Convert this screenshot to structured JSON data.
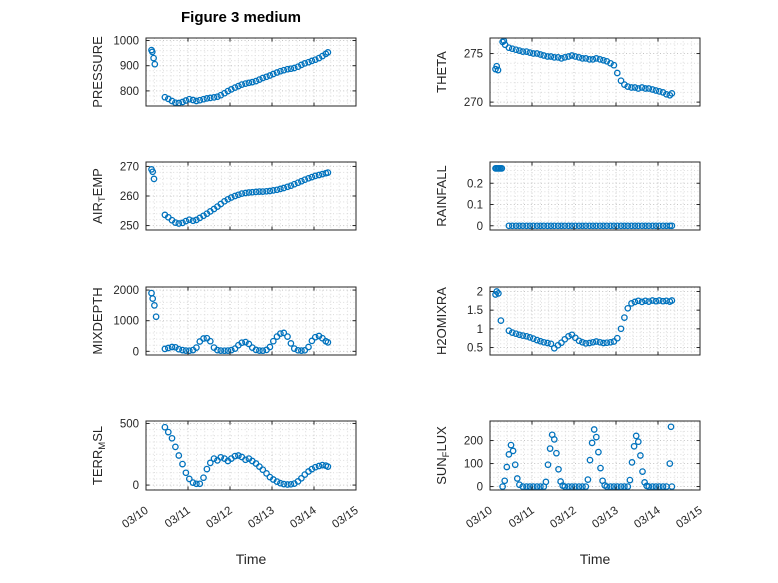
{
  "figure": {
    "title": "Figure 3 medium",
    "xlabel": "Time",
    "x_tick_labels": [
      "03/10",
      "03/11",
      "03/12",
      "03/13",
      "03/14",
      "03/15"
    ],
    "marker_color": "#0072BD",
    "text_color": "#262626"
  },
  "chart_data": [
    {
      "type": "scatter",
      "name": "PRESSURE",
      "row": 0,
      "col": 0,
      "ylabel": {
        "pre": "PRESSURE",
        "sub": "",
        "post": ""
      },
      "xlim": [
        0,
        5
      ],
      "xticks": [
        0,
        1,
        2,
        3,
        4,
        5
      ],
      "ylim": [
        740,
        1010
      ],
      "yticks": [
        800,
        900,
        1000
      ],
      "ytick_labels": [
        "800",
        "900",
        "1000"
      ],
      "y_minor_step": 20,
      "x": [
        0.13,
        0.15,
        0.18,
        0.21,
        0.45,
        0.53,
        0.62,
        0.7,
        0.78,
        0.87,
        0.95,
        1.03,
        1.12,
        1.2,
        1.28,
        1.37,
        1.45,
        1.53,
        1.62,
        1.7,
        1.78,
        1.87,
        1.95,
        2.03,
        2.12,
        2.2,
        2.28,
        2.37,
        2.45,
        2.53,
        2.62,
        2.7,
        2.78,
        2.87,
        2.95,
        3.03,
        3.12,
        3.2,
        3.28,
        3.37,
        3.45,
        3.53,
        3.62,
        3.7,
        3.78,
        3.87,
        3.95,
        4.03,
        4.12,
        4.2,
        4.28,
        4.33
      ],
      "y": [
        962,
        955,
        930,
        906,
        775,
        768,
        760,
        753,
        752,
        756,
        762,
        767,
        764,
        760,
        763,
        767,
        770,
        772,
        774,
        777,
        783,
        791,
        799,
        806,
        813,
        819,
        825,
        829,
        832,
        835,
        839,
        845,
        851,
        856,
        861,
        867,
        873,
        878,
        882,
        886,
        888,
        891,
        896,
        903,
        909,
        914,
        919,
        924,
        930,
        938,
        947,
        953
      ]
    },
    {
      "type": "scatter",
      "name": "THETA",
      "row": 0,
      "col": 1,
      "ylabel": {
        "pre": "THETA",
        "sub": "",
        "post": ""
      },
      "xlim": [
        0,
        5
      ],
      "xticks": [
        0,
        1,
        2,
        3,
        4,
        5
      ],
      "ylim": [
        269.6,
        276.6
      ],
      "yticks": [
        270,
        275
      ],
      "ytick_labels": [
        "270",
        "275"
      ],
      "y_minor_step": 1,
      "x": [
        0.13,
        0.16,
        0.19,
        0.3,
        0.33,
        0.36,
        0.45,
        0.53,
        0.62,
        0.7,
        0.78,
        0.87,
        0.95,
        1.03,
        1.12,
        1.2,
        1.28,
        1.37,
        1.45,
        1.53,
        1.62,
        1.7,
        1.78,
        1.87,
        1.95,
        2.03,
        2.12,
        2.2,
        2.28,
        2.37,
        2.45,
        2.53,
        2.62,
        2.7,
        2.78,
        2.87,
        2.95,
        3.03,
        3.12,
        3.2,
        3.28,
        3.37,
        3.45,
        3.53,
        3.62,
        3.7,
        3.78,
        3.87,
        3.95,
        4.03,
        4.12,
        4.2,
        4.28,
        4.33
      ],
      "y": [
        273.4,
        273.7,
        273.3,
        276.2,
        276.3,
        275.9,
        275.6,
        275.5,
        275.4,
        275.3,
        275.2,
        275.2,
        275.1,
        275.0,
        275.0,
        274.9,
        274.8,
        274.7,
        274.7,
        274.6,
        274.6,
        274.5,
        274.6,
        274.7,
        274.8,
        274.7,
        274.6,
        274.5,
        274.5,
        274.4,
        274.4,
        274.5,
        274.4,
        274.3,
        274.2,
        274.0,
        273.8,
        273.0,
        272.2,
        271.8,
        271.6,
        271.5,
        271.5,
        271.4,
        271.5,
        271.4,
        271.4,
        271.3,
        271.2,
        271.1,
        271.0,
        270.8,
        270.7,
        270.9
      ]
    },
    {
      "type": "scatter",
      "name": "AIR_TEMP",
      "row": 1,
      "col": 0,
      "ylabel": {
        "pre": "AIR",
        "sub": "T",
        "post": "EMP"
      },
      "xlim": [
        0,
        5
      ],
      "xticks": [
        0,
        1,
        2,
        3,
        4,
        5
      ],
      "ylim": [
        248.5,
        271.5
      ],
      "yticks": [
        250,
        260,
        270
      ],
      "ytick_labels": [
        "250",
        "260",
        "270"
      ],
      "y_minor_step": 2,
      "x": [
        0.13,
        0.16,
        0.19,
        0.45,
        0.53,
        0.62,
        0.7,
        0.78,
        0.87,
        0.95,
        1.03,
        1.12,
        1.2,
        1.28,
        1.37,
        1.45,
        1.53,
        1.62,
        1.7,
        1.78,
        1.87,
        1.95,
        2.03,
        2.12,
        2.2,
        2.28,
        2.37,
        2.45,
        2.53,
        2.62,
        2.7,
        2.78,
        2.87,
        2.95,
        3.03,
        3.12,
        3.2,
        3.28,
        3.37,
        3.45,
        3.53,
        3.62,
        3.7,
        3.78,
        3.87,
        3.95,
        4.03,
        4.12,
        4.2,
        4.28,
        4.33
      ],
      "y": [
        269.0,
        268.2,
        265.8,
        253.6,
        252.8,
        251.8,
        251.0,
        250.7,
        250.9,
        251.5,
        252.0,
        251.6,
        251.9,
        252.6,
        253.3,
        254.0,
        254.8,
        255.6,
        256.4,
        257.3,
        258.2,
        258.9,
        259.5,
        260.0,
        260.4,
        260.8,
        261.0,
        261.2,
        261.3,
        261.4,
        261.5,
        261.5,
        261.6,
        261.7,
        261.9,
        262.1,
        262.4,
        262.7,
        263.1,
        263.5,
        264.0,
        264.5,
        265.0,
        265.5,
        266.0,
        266.4,
        266.8,
        267.1,
        267.4,
        267.7,
        267.9
      ]
    },
    {
      "type": "scatter",
      "name": "RAINFALL",
      "row": 1,
      "col": 1,
      "ylabel": {
        "pre": "RAINFALL",
        "sub": "",
        "post": ""
      },
      "xlim": [
        0,
        5
      ],
      "xticks": [
        0,
        1,
        2,
        3,
        4,
        5
      ],
      "ylim": [
        -0.02,
        0.3
      ],
      "yticks": [
        0,
        0.1,
        0.2
      ],
      "ytick_labels": [
        "0",
        "0.1",
        "0.2"
      ],
      "y_minor_step": 0.02,
      "x": [
        0.13,
        0.16,
        0.19,
        0.22,
        0.25,
        0.28,
        0.45,
        0.53,
        0.62,
        0.7,
        0.78,
        0.87,
        0.95,
        1.03,
        1.12,
        1.2,
        1.28,
        1.37,
        1.45,
        1.53,
        1.62,
        1.7,
        1.78,
        1.87,
        1.95,
        2.03,
        2.12,
        2.2,
        2.28,
        2.37,
        2.45,
        2.53,
        2.62,
        2.7,
        2.78,
        2.87,
        2.95,
        3.03,
        3.12,
        3.2,
        3.28,
        3.37,
        3.45,
        3.53,
        3.62,
        3.7,
        3.78,
        3.87,
        3.95,
        4.03,
        4.12,
        4.2,
        4.28,
        4.33
      ],
      "y": [
        0.27,
        0.27,
        0.27,
        0.27,
        0.27,
        0.27,
        0,
        0,
        0,
        0,
        0,
        0,
        0,
        0,
        0,
        0,
        0,
        0,
        0,
        0,
        0,
        0,
        0,
        0,
        0,
        0,
        0,
        0,
        0,
        0,
        0,
        0,
        0,
        0,
        0,
        0,
        0,
        0,
        0,
        0,
        0,
        0,
        0,
        0,
        0,
        0,
        0,
        0,
        0,
        0,
        0,
        0,
        0,
        0
      ]
    },
    {
      "type": "scatter",
      "name": "MIXDEPTH",
      "row": 2,
      "col": 0,
      "ylabel": {
        "pre": "MIXDEPTH",
        "sub": "",
        "post": ""
      },
      "xlim": [
        0,
        5
      ],
      "xticks": [
        0,
        1,
        2,
        3,
        4,
        5
      ],
      "ylim": [
        -120,
        2100
      ],
      "yticks": [
        0,
        1000,
        2000
      ],
      "ytick_labels": [
        "0",
        "1000",
        "2000"
      ],
      "y_minor_step": 200,
      "x": [
        0.13,
        0.16,
        0.2,
        0.24,
        0.45,
        0.53,
        0.62,
        0.7,
        0.78,
        0.87,
        0.95,
        1.03,
        1.12,
        1.2,
        1.28,
        1.37,
        1.45,
        1.53,
        1.62,
        1.7,
        1.78,
        1.87,
        1.95,
        2.03,
        2.12,
        2.2,
        2.28,
        2.37,
        2.45,
        2.53,
        2.62,
        2.7,
        2.78,
        2.87,
        2.95,
        3.03,
        3.12,
        3.2,
        3.28,
        3.37,
        3.45,
        3.53,
        3.62,
        3.7,
        3.78,
        3.87,
        3.95,
        4.03,
        4.12,
        4.2,
        4.28,
        4.33
      ],
      "y": [
        1900,
        1720,
        1500,
        1130,
        80,
        110,
        140,
        130,
        70,
        40,
        25,
        20,
        40,
        120,
        320,
        420,
        430,
        330,
        120,
        40,
        25,
        20,
        25,
        40,
        90,
        200,
        280,
        300,
        240,
        120,
        45,
        25,
        20,
        45,
        140,
        330,
        480,
        580,
        600,
        480,
        260,
        90,
        35,
        25,
        35,
        140,
        340,
        460,
        500,
        430,
        330,
        290
      ]
    },
    {
      "type": "scatter",
      "name": "H2OMIXRA",
      "row": 2,
      "col": 1,
      "ylabel": {
        "pre": "H2OMIXRA",
        "sub": "",
        "post": ""
      },
      "xlim": [
        0,
        5
      ],
      "xticks": [
        0,
        1,
        2,
        3,
        4,
        5
      ],
      "ylim": [
        0.3,
        2.12
      ],
      "yticks": [
        0.5,
        1,
        1.5,
        2
      ],
      "ytick_labels": [
        "0.5",
        "1",
        "1.5",
        "2"
      ],
      "y_minor_step": 0.1,
      "x": [
        0.13,
        0.16,
        0.2,
        0.26,
        0.45,
        0.53,
        0.62,
        0.7,
        0.78,
        0.87,
        0.95,
        1.03,
        1.12,
        1.2,
        1.28,
        1.37,
        1.45,
        1.53,
        1.62,
        1.7,
        1.78,
        1.87,
        1.95,
        2.03,
        2.12,
        2.2,
        2.28,
        2.37,
        2.45,
        2.53,
        2.62,
        2.7,
        2.78,
        2.87,
        2.95,
        3.03,
        3.12,
        3.2,
        3.28,
        3.37,
        3.45,
        3.53,
        3.62,
        3.7,
        3.78,
        3.87,
        3.95,
        4.03,
        4.12,
        4.2,
        4.28,
        4.33
      ],
      "y": [
        1.92,
        2.0,
        1.95,
        1.22,
        0.95,
        0.9,
        0.87,
        0.84,
        0.82,
        0.8,
        0.77,
        0.74,
        0.7,
        0.67,
        0.64,
        0.62,
        0.6,
        0.48,
        0.56,
        0.63,
        0.72,
        0.8,
        0.84,
        0.76,
        0.68,
        0.64,
        0.61,
        0.62,
        0.64,
        0.66,
        0.64,
        0.62,
        0.63,
        0.64,
        0.66,
        0.75,
        1.0,
        1.3,
        1.55,
        1.68,
        1.72,
        1.75,
        1.72,
        1.75,
        1.73,
        1.76,
        1.74,
        1.76,
        1.74,
        1.75,
        1.73,
        1.76
      ]
    },
    {
      "type": "scatter",
      "name": "TERR_MSL",
      "row": 3,
      "col": 0,
      "ylabel": {
        "pre": "TERR",
        "sub": "M",
        "post": "SL"
      },
      "xlim": [
        0,
        5
      ],
      "xticks": [
        0,
        1,
        2,
        3,
        4,
        5
      ],
      "ylim": [
        -40,
        520
      ],
      "yticks": [
        0,
        500
      ],
      "ytick_labels": [
        "0",
        "500"
      ],
      "y_minor_step": 50,
      "x": [
        0.45,
        0.53,
        0.62,
        0.7,
        0.78,
        0.87,
        0.95,
        1.03,
        1.12,
        1.2,
        1.28,
        1.37,
        1.45,
        1.53,
        1.62,
        1.7,
        1.78,
        1.87,
        1.95,
        2.03,
        2.12,
        2.2,
        2.28,
        2.37,
        2.45,
        2.53,
        2.62,
        2.7,
        2.78,
        2.87,
        2.95,
        3.03,
        3.12,
        3.2,
        3.28,
        3.37,
        3.45,
        3.53,
        3.62,
        3.7,
        3.78,
        3.87,
        3.95,
        4.03,
        4.12,
        4.2,
        4.28,
        4.33
      ],
      "y": [
        470,
        430,
        380,
        310,
        240,
        170,
        100,
        50,
        20,
        10,
        10,
        60,
        130,
        180,
        215,
        200,
        225,
        215,
        195,
        215,
        235,
        240,
        228,
        205,
        215,
        195,
        175,
        150,
        125,
        95,
        65,
        45,
        28,
        15,
        8,
        5,
        6,
        12,
        30,
        55,
        85,
        110,
        130,
        145,
        155,
        162,
        158,
        150
      ]
    },
    {
      "type": "scatter",
      "name": "SUN_FLUX",
      "row": 3,
      "col": 1,
      "ylabel": {
        "pre": "SUN",
        "sub": "F",
        "post": "LUX"
      },
      "xlim": [
        0,
        5
      ],
      "xticks": [
        0,
        1,
        2,
        3,
        4,
        5
      ],
      "ylim": [
        -15,
        285
      ],
      "yticks": [
        0,
        100,
        200
      ],
      "ytick_labels": [
        "0",
        "100",
        "200"
      ],
      "y_minor_step": 20,
      "x": [
        0.3,
        0.35,
        0.4,
        0.45,
        0.5,
        0.55,
        0.6,
        0.65,
        0.7,
        0.78,
        0.87,
        0.95,
        1.03,
        1.12,
        1.2,
        1.28,
        1.33,
        1.38,
        1.43,
        1.48,
        1.53,
        1.58,
        1.63,
        1.68,
        1.73,
        1.78,
        1.87,
        1.95,
        2.03,
        2.12,
        2.2,
        2.28,
        2.33,
        2.38,
        2.43,
        2.48,
        2.53,
        2.58,
        2.63,
        2.68,
        2.73,
        2.78,
        2.87,
        2.95,
        3.03,
        3.12,
        3.2,
        3.28,
        3.33,
        3.38,
        3.43,
        3.48,
        3.53,
        3.58,
        3.63,
        3.68,
        3.73,
        3.78,
        3.87,
        3.95,
        4.03,
        4.12,
        4.2,
        4.28,
        4.31,
        4.33
      ],
      "y": [
        0,
        25,
        85,
        140,
        180,
        155,
        95,
        35,
        8,
        0,
        0,
        0,
        0,
        0,
        0,
        0,
        20,
        95,
        165,
        225,
        205,
        145,
        75,
        22,
        4,
        0,
        0,
        0,
        0,
        0,
        0,
        0,
        30,
        115,
        190,
        248,
        215,
        150,
        80,
        25,
        5,
        0,
        0,
        0,
        0,
        0,
        0,
        0,
        28,
        105,
        175,
        220,
        195,
        135,
        65,
        18,
        3,
        0,
        0,
        0,
        0,
        0,
        0,
        100,
        260,
        0
      ]
    }
  ]
}
